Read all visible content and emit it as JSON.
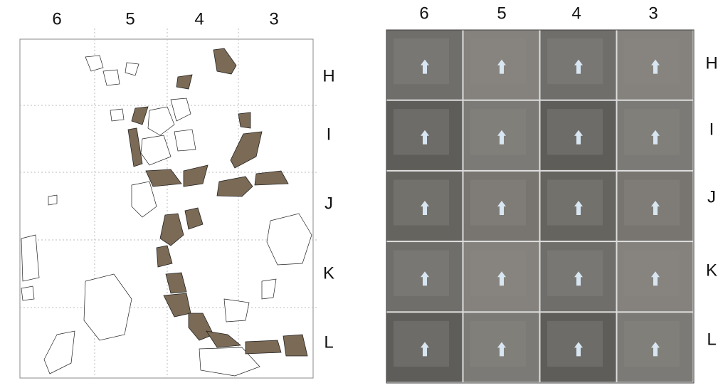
{
  "plan": {
    "columns": [
      "6",
      "5",
      "4",
      "3"
    ],
    "rows": [
      "H",
      "I",
      "J",
      "K",
      "L"
    ]
  },
  "photos": {
    "columns": [
      "6",
      "5",
      "4",
      "3"
    ],
    "rows": [
      "H",
      "I",
      "J",
      "K",
      "L"
    ]
  }
}
